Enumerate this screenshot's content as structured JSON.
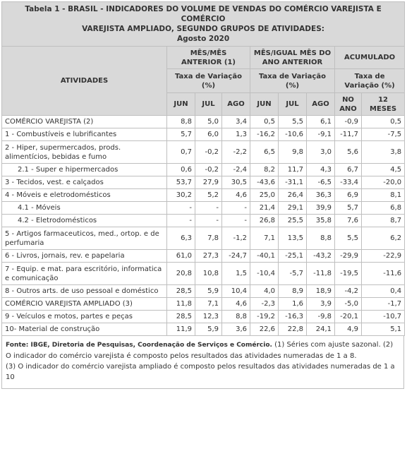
{
  "title": {
    "line1": "Tabela 1 - BRASIL - INDICADORES DO VOLUME DE VENDAS DO COMÉRCIO VAREJISTA E COMÉRCIO",
    "line2": "VAREJISTA AMPLIADO, SEGUNDO GRUPOS DE ATIVIDADES:",
    "line3": "Agosto 2020"
  },
  "header": {
    "atividades": "ATIVIDADES",
    "group1": "MÊS/MÊS ANTERIOR (1)",
    "group2": "MÊS/IGUAL MÊS DO ANO ANTERIOR",
    "group3": "ACUMULADO",
    "taxa1": "Taxa de Variação (%)",
    "taxa2": "Taxa de Variação (%)",
    "taxa3": "Taxa de Variação (%)",
    "cols": [
      "JUN",
      "JUL",
      "AGO",
      "JUN",
      "JUL",
      "AGO",
      "NO ANO",
      "12 MESES"
    ]
  },
  "rows": [
    {
      "label": "COMÉRCIO VAREJISTA (2)",
      "indent": false,
      "values": [
        "8,8",
        "5,0",
        "3,4",
        "0,5",
        "5,5",
        "6,1",
        "-0,9",
        "0,5"
      ]
    },
    {
      "label": "1 - Combustíveis e lubrificantes",
      "indent": false,
      "values": [
        "5,7",
        "6,0",
        "1,3",
        "-16,2",
        "-10,6",
        "-9,1",
        "-11,7",
        "-7,5"
      ]
    },
    {
      "label": "2 - Hiper, supermercados, prods. alimentícios, bebidas e fumo",
      "indent": false,
      "values": [
        "0,7",
        "-0,2",
        "-2,2",
        "6,5",
        "9,8",
        "3,0",
        "5,6",
        "3,8"
      ]
    },
    {
      "label": "2.1 - Super e hipermercados",
      "indent": true,
      "values": [
        "0,6",
        "-0,2",
        "-2,4",
        "8,2",
        "11,7",
        "4,3",
        "6,7",
        "4,5"
      ]
    },
    {
      "label": "3 - Tecidos, vest. e calçados",
      "indent": false,
      "values": [
        "53,7",
        "27,9",
        "30,5",
        "-43,6",
        "-31,1",
        "-6,5",
        "-33,4",
        "-20,0"
      ]
    },
    {
      "label": "4 - Móveis e eletrodomésticos",
      "indent": false,
      "values": [
        "30,2",
        "5,2",
        "4,6",
        "25,0",
        "26,4",
        "36,3",
        "6,9",
        "8,1"
      ]
    },
    {
      "label": "4.1 - Móveis",
      "indent": true,
      "values": [
        "-",
        "-",
        "-",
        "21,4",
        "29,1",
        "39,9",
        "5,7",
        "6,8"
      ]
    },
    {
      "label": "4.2 - Eletrodomésticos",
      "indent": true,
      "values": [
        "-",
        "-",
        "-",
        "26,8",
        "25,5",
        "35,8",
        "7,6",
        "8,7"
      ]
    },
    {
      "label": "5 - Artigos farmaceuticos, med., ortop. e de perfumaria",
      "indent": false,
      "values": [
        "6,3",
        "7,8",
        "-1,2",
        "7,1",
        "13,5",
        "8,8",
        "5,5",
        "6,2"
      ]
    },
    {
      "label": "6 - Livros, jornais, rev. e papelaria",
      "indent": false,
      "values": [
        "61,0",
        "27,3",
        "-24,7",
        "-40,1",
        "-25,1",
        "-43,2",
        "-29,9",
        "-22,9"
      ]
    },
    {
      "label": "7 - Equip. e mat. para escritório, informatica e comunicação",
      "indent": false,
      "values": [
        "20,8",
        "10,8",
        "1,5",
        "-10,4",
        "-5,7",
        "-11,8",
        "-19,5",
        "-11,6"
      ]
    },
    {
      "label": "8 - Outros arts. de uso pessoal e doméstico",
      "indent": false,
      "values": [
        "28,5",
        "5,9",
        "10,4",
        "4,0",
        "8,9",
        "18,9",
        "-4,2",
        "0,4"
      ]
    },
    {
      "label": "COMÉRCIO VAREJISTA AMPLIADO (3)",
      "indent": false,
      "values": [
        "11,8",
        "7,1",
        "4,6",
        "-2,3",
        "1,6",
        "3,9",
        "-5,0",
        "-1,7"
      ]
    },
    {
      "label": "9 - Veículos e motos, partes e peças",
      "indent": false,
      "values": [
        "28,5",
        "12,3",
        "8,8",
        "-19,2",
        "-16,3",
        "-9,8",
        "-20,1",
        "-10,7"
      ]
    },
    {
      "label": "10- Material de construção",
      "indent": false,
      "values": [
        "11,9",
        "5,9",
        "3,6",
        "22,6",
        "22,8",
        "24,1",
        "4,9",
        "5,1"
      ]
    }
  ],
  "footer": {
    "source": "Fonte: IBGE, Diretoria de Pesquisas, Coordenação de Serviços e Comércio.",
    "note12": " (1) Séries com ajuste sazonal. (2) O indicador do comércio varejista é composto pelos resultados das atividades numeradas de 1 a 8.",
    "note3": "(3) O indicador do comércio varejista ampliado é composto pelos resultados das atividades numeradas de 1 a 10"
  }
}
